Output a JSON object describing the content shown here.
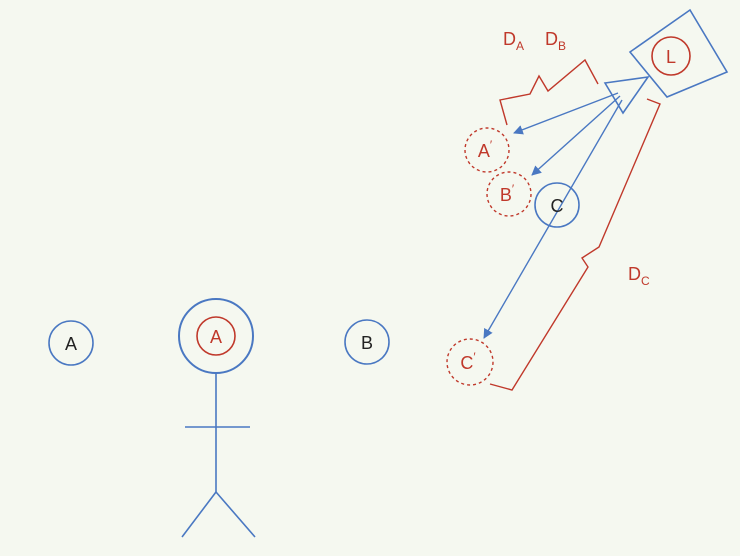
{
  "colors": {
    "blue": "#4a78c2",
    "red": "#c0392b",
    "dark": "#222222",
    "background": "#f5f8f0"
  },
  "nodes": {
    "a_plain": {
      "label": "A"
    },
    "a_head": {
      "label": "A"
    },
    "b_plain": {
      "label": "B"
    },
    "c_plain": {
      "label": "C"
    },
    "a_prime": {
      "label": "A",
      "mark": "′"
    },
    "b_prime": {
      "label": "B",
      "mark": "′"
    },
    "c_prime": {
      "label": "C",
      "mark": "′"
    },
    "light": {
      "label": "L"
    }
  },
  "distances": {
    "da": {
      "main": "D",
      "sub": "A"
    },
    "db": {
      "main": "D",
      "sub": "B"
    },
    "dc": {
      "main": "D",
      "sub": "C"
    }
  },
  "icons": {
    "person": "stick-figure-icon",
    "projector": "projector-icon"
  }
}
